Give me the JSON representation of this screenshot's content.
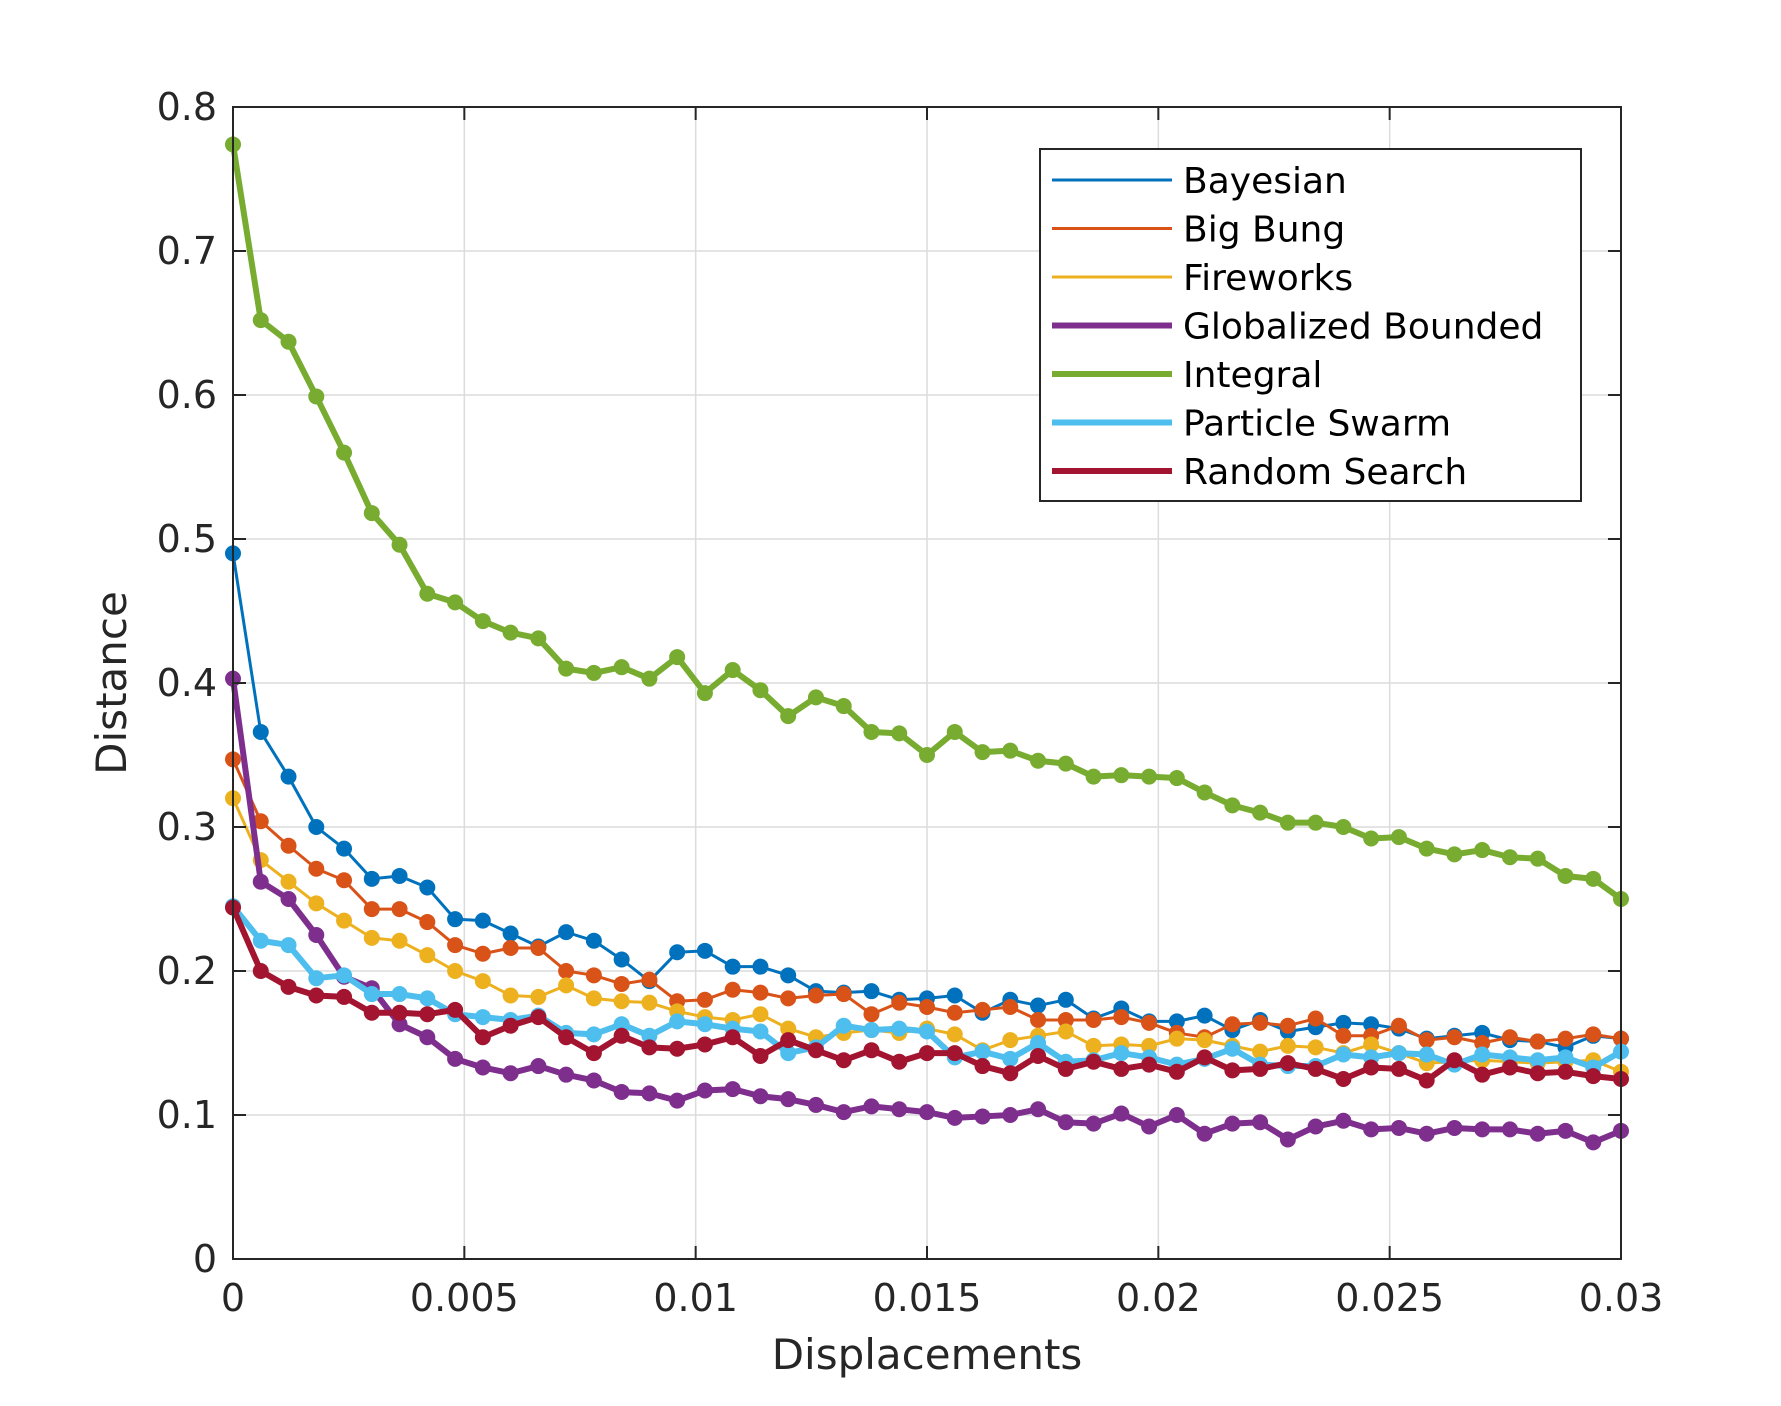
{
  "chart_data": {
    "type": "line",
    "title": "",
    "xlabel": "Displacements",
    "ylabel": "Distance",
    "xlim": [
      0,
      0.03
    ],
    "ylim": [
      0,
      0.8
    ],
    "xticks": [
      0,
      0.005,
      0.01,
      0.015,
      0.02,
      0.025,
      0.03
    ],
    "xtick_labels": [
      "0",
      "0.005",
      "0.01",
      "0.015",
      "0.02",
      "0.025",
      "0.03"
    ],
    "yticks": [
      0,
      0.1,
      0.2,
      0.3,
      0.4,
      0.5,
      0.6,
      0.7,
      0.8
    ],
    "ytick_labels": [
      "0",
      "0.1",
      "0.2",
      "0.3",
      "0.4",
      "0.5",
      "0.6",
      "0.7",
      "0.8"
    ],
    "grid": true,
    "legend_position": "top-right",
    "x": [
      0,
      0.0006,
      0.0012,
      0.0018,
      0.0024,
      0.003,
      0.0036,
      0.0042,
      0.0048,
      0.0054,
      0.006,
      0.0066,
      0.0072,
      0.0078,
      0.0084,
      0.009,
      0.0096,
      0.0102,
      0.0108,
      0.0114,
      0.012,
      0.0126,
      0.0132,
      0.0138,
      0.0144,
      0.015,
      0.0156,
      0.0162,
      0.0168,
      0.0174,
      0.018,
      0.0186,
      0.0192,
      0.0198,
      0.0204,
      0.021,
      0.0216,
      0.0222,
      0.0228,
      0.0234,
      0.024,
      0.0246,
      0.0252,
      0.0258,
      0.0264,
      0.027,
      0.0276,
      0.0282,
      0.0288,
      0.0294,
      0.03
    ],
    "series": [
      {
        "name": "Bayesian",
        "color": "#0072BD",
        "line_width": 3,
        "values": [
          0.49,
          0.366,
          0.335,
          0.3,
          0.285,
          0.264,
          0.266,
          0.258,
          0.236,
          0.235,
          0.226,
          0.217,
          0.227,
          0.221,
          0.208,
          0.193,
          0.213,
          0.214,
          0.203,
          0.203,
          0.197,
          0.186,
          0.185,
          0.186,
          0.18,
          0.181,
          0.183,
          0.171,
          0.18,
          0.176,
          0.18,
          0.167,
          0.174,
          0.165,
          0.165,
          0.169,
          0.159,
          0.166,
          0.158,
          0.161,
          0.164,
          0.163,
          0.16,
          0.153,
          0.155,
          0.157,
          0.152,
          0.151,
          0.147,
          0.155,
          0.153
        ]
      },
      {
        "name": "Big Bung",
        "color": "#D95319",
        "line_width": 3,
        "values": [
          0.347,
          0.304,
          0.287,
          0.271,
          0.263,
          0.243,
          0.243,
          0.234,
          0.218,
          0.212,
          0.216,
          0.216,
          0.2,
          0.197,
          0.191,
          0.194,
          0.179,
          0.18,
          0.187,
          0.185,
          0.181,
          0.183,
          0.184,
          0.17,
          0.178,
          0.175,
          0.171,
          0.173,
          0.175,
          0.166,
          0.166,
          0.166,
          0.168,
          0.164,
          0.157,
          0.154,
          0.163,
          0.164,
          0.162,
          0.167,
          0.155,
          0.155,
          0.162,
          0.152,
          0.154,
          0.15,
          0.154,
          0.151,
          0.153,
          0.156,
          0.153
        ]
      },
      {
        "name": "Fireworks",
        "color": "#EDB120",
        "line_width": 3,
        "values": [
          0.32,
          0.277,
          0.262,
          0.247,
          0.235,
          0.223,
          0.221,
          0.211,
          0.2,
          0.193,
          0.183,
          0.182,
          0.19,
          0.181,
          0.179,
          0.178,
          0.172,
          0.168,
          0.166,
          0.17,
          0.16,
          0.154,
          0.157,
          0.159,
          0.157,
          0.16,
          0.156,
          0.145,
          0.152,
          0.155,
          0.158,
          0.148,
          0.149,
          0.148,
          0.153,
          0.152,
          0.148,
          0.144,
          0.148,
          0.147,
          0.143,
          0.149,
          0.143,
          0.136,
          0.137,
          0.138,
          0.137,
          0.136,
          0.137,
          0.138,
          0.13
        ]
      },
      {
        "name": "Globalized Bounded",
        "color": "#7E2F8E",
        "line_width": 6,
        "values": [
          0.403,
          0.262,
          0.25,
          0.225,
          0.196,
          0.188,
          0.163,
          0.154,
          0.139,
          0.133,
          0.129,
          0.134,
          0.128,
          0.124,
          0.116,
          0.115,
          0.11,
          0.117,
          0.118,
          0.113,
          0.111,
          0.107,
          0.102,
          0.106,
          0.104,
          0.102,
          0.098,
          0.099,
          0.1,
          0.104,
          0.095,
          0.094,
          0.101,
          0.092,
          0.1,
          0.087,
          0.094,
          0.095,
          0.083,
          0.092,
          0.096,
          0.09,
          0.091,
          0.087,
          0.091,
          0.09,
          0.09,
          0.087,
          0.089,
          0.081,
          0.089
        ]
      },
      {
        "name": "Integral",
        "color": "#77AC30",
        "line_width": 6,
        "values": [
          0.774,
          0.652,
          0.637,
          0.599,
          0.56,
          0.518,
          0.496,
          0.462,
          0.456,
          0.443,
          0.435,
          0.431,
          0.41,
          0.407,
          0.411,
          0.403,
          0.418,
          0.393,
          0.409,
          0.395,
          0.377,
          0.39,
          0.384,
          0.366,
          0.365,
          0.35,
          0.366,
          0.352,
          0.353,
          0.346,
          0.344,
          0.335,
          0.336,
          0.335,
          0.334,
          0.324,
          0.315,
          0.31,
          0.303,
          0.303,
          0.3,
          0.292,
          0.293,
          0.285,
          0.281,
          0.284,
          0.279,
          0.278,
          0.266,
          0.264,
          0.25
        ]
      },
      {
        "name": "Particle Swarm",
        "color": "#4DBEEE",
        "line_width": 6,
        "values": [
          0.245,
          0.221,
          0.218,
          0.195,
          0.197,
          0.184,
          0.184,
          0.181,
          0.17,
          0.168,
          0.166,
          0.169,
          0.157,
          0.156,
          0.163,
          0.155,
          0.165,
          0.163,
          0.16,
          0.158,
          0.143,
          0.147,
          0.162,
          0.159,
          0.16,
          0.158,
          0.14,
          0.144,
          0.139,
          0.15,
          0.137,
          0.138,
          0.143,
          0.14,
          0.135,
          0.139,
          0.146,
          0.135,
          0.134,
          0.134,
          0.142,
          0.14,
          0.143,
          0.142,
          0.135,
          0.142,
          0.14,
          0.138,
          0.14,
          0.133,
          0.144
        ]
      },
      {
        "name": "Random Search",
        "color": "#A2142F",
        "line_width": 6,
        "values": [
          0.244,
          0.2,
          0.189,
          0.183,
          0.182,
          0.171,
          0.171,
          0.17,
          0.173,
          0.154,
          0.162,
          0.168,
          0.154,
          0.143,
          0.155,
          0.147,
          0.146,
          0.149,
          0.154,
          0.141,
          0.152,
          0.145,
          0.138,
          0.145,
          0.137,
          0.143,
          0.143,
          0.134,
          0.129,
          0.141,
          0.132,
          0.137,
          0.132,
          0.135,
          0.13,
          0.14,
          0.131,
          0.132,
          0.136,
          0.132,
          0.125,
          0.133,
          0.132,
          0.124,
          0.138,
          0.128,
          0.133,
          0.129,
          0.13,
          0.127,
          0.125
        ]
      }
    ]
  }
}
